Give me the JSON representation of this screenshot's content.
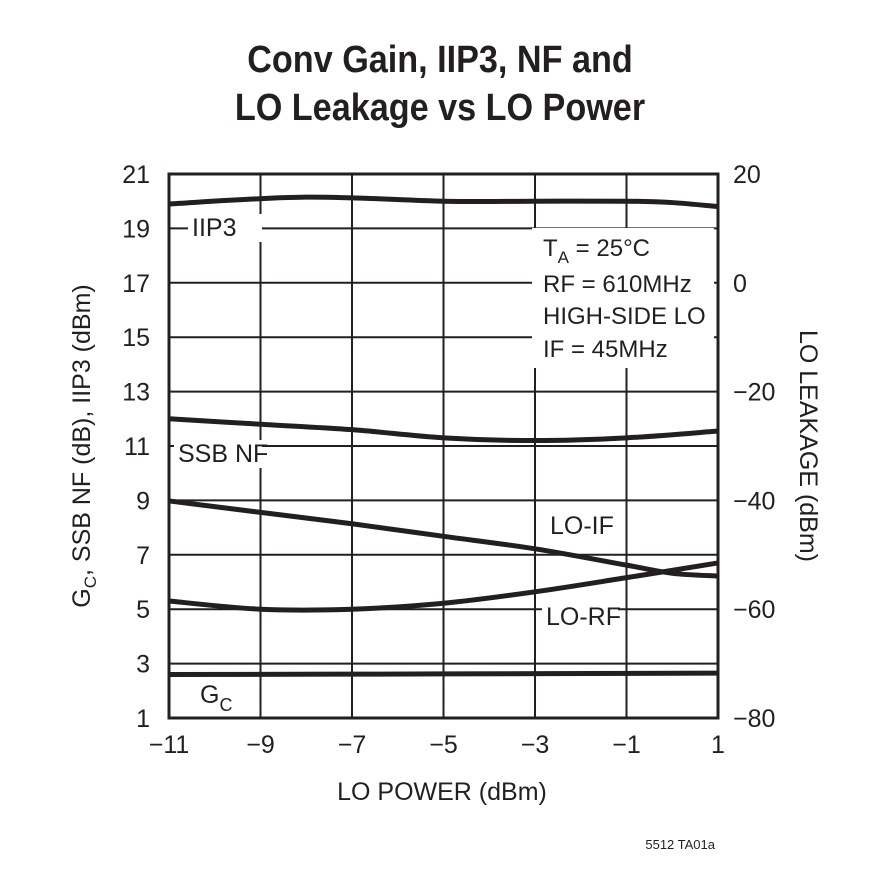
{
  "chart_data": {
    "type": "line",
    "title": [
      "Conv Gain, IIP3, NF and",
      "LO Leakage vs LO Power"
    ],
    "xlabel": "LO POWER (dBm)",
    "ylabel_left": "G_C, SSB NF (dB), IIP3 (dBm)",
    "ylabel_right": "LO LEAKAGE (dBm)",
    "xlim": [
      -11,
      1
    ],
    "ylim_left": [
      1,
      21
    ],
    "ylim_right": [
      -80,
      20
    ],
    "xticks": [
      "−11",
      "−9",
      "−7",
      "−5",
      "−3",
      "−1",
      "1"
    ],
    "yticks_left": [
      "21",
      "19",
      "17",
      "15",
      "13",
      "11",
      "9",
      "7",
      "5",
      "3",
      "1"
    ],
    "yticks_right": [
      "20",
      "0",
      "−20",
      "−40",
      "−60",
      "−80"
    ],
    "grid": true,
    "annotation": [
      "T_A = 25°C",
      "RF = 610MHz",
      "HIGH-SIDE LO",
      "IF = 45MHz"
    ],
    "series": [
      {
        "name": "IIP3",
        "axis": "left",
        "x": [
          -11,
          -8,
          -5,
          -3,
          -1,
          0,
          1
        ],
        "y": [
          19.9,
          20.15,
          20.0,
          20.0,
          20.0,
          19.95,
          19.8
        ]
      },
      {
        "name": "SSB NF",
        "axis": "left",
        "x": [
          -11,
          -9,
          -7,
          -5,
          -3,
          -1,
          1
        ],
        "y": [
          12.0,
          11.8,
          11.6,
          11.3,
          11.2,
          11.3,
          11.55
        ]
      },
      {
        "name": "LO-IF",
        "axis": "right",
        "x": [
          -11,
          -9,
          -7,
          -5,
          -3,
          -1,
          0,
          1
        ],
        "y": [
          -40.1,
          -42.2,
          -44.3,
          -46.6,
          -48.9,
          -51.9,
          -53.4,
          -53.9
        ]
      },
      {
        "name": "LO-RF",
        "axis": "right",
        "x": [
          -11,
          -9,
          -7,
          -5,
          -3,
          -1,
          1
        ],
        "y": [
          -58.5,
          -60.0,
          -60.0,
          -58.9,
          -56.8,
          -54.2,
          -51.5
        ]
      },
      {
        "name": "G_C",
        "axis": "left",
        "x": [
          -11,
          -5,
          1
        ],
        "y": [
          2.6,
          2.62,
          2.65
        ]
      }
    ],
    "footnote": "5512 TA01a"
  }
}
